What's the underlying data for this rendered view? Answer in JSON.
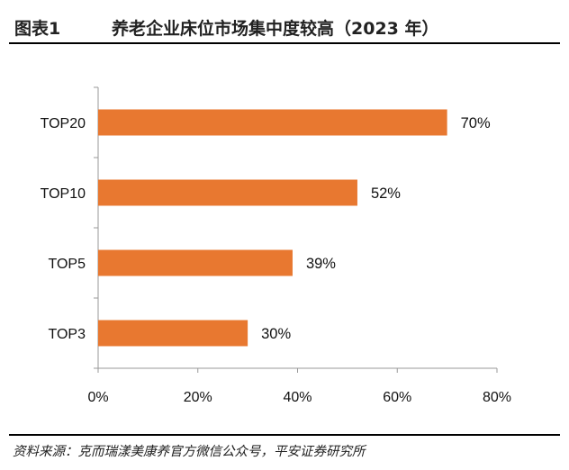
{
  "header": {
    "figure_label": "图表1",
    "title": "养老企业床位市场集中度较高（2023 年）"
  },
  "source": "资料来源：克而瑞漾美康养官方微信公众号，平安证券研究所",
  "colors": {
    "bar": "#E87830",
    "axis": "#999999",
    "text": "#111111"
  },
  "chart_data": {
    "type": "bar",
    "orientation": "horizontal",
    "title": "养老企业床位市场集中度较高（2023 年）",
    "categories": [
      "TOP20",
      "TOP10",
      "TOP5",
      "TOP3"
    ],
    "values": [
      70,
      52,
      39,
      30
    ],
    "value_labels": [
      "70%",
      "52%",
      "39%",
      "30%"
    ],
    "xlim": [
      0,
      80
    ],
    "xticks": [
      0,
      20,
      40,
      60,
      80
    ],
    "xtick_labels": [
      "0%",
      "20%",
      "40%",
      "60%",
      "80%"
    ],
    "xlabel": "",
    "ylabel": "",
    "grid": false,
    "legend": false
  }
}
